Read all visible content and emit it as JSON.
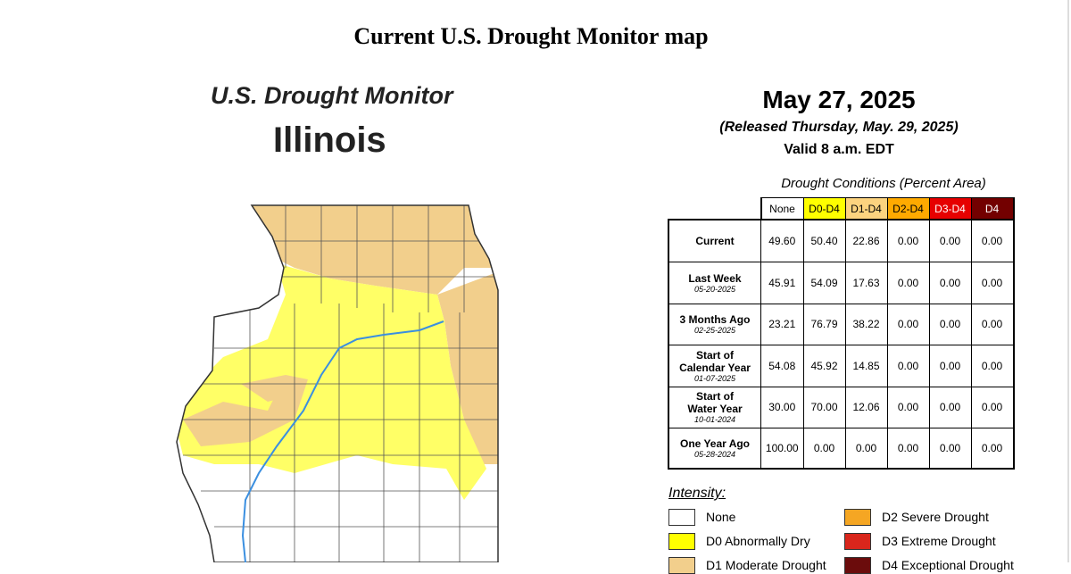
{
  "page_title": "Current U.S. Drought Monitor map",
  "map": {
    "title": "U.S. Drought Monitor",
    "state": "Illinois"
  },
  "info": {
    "date": "May 27, 2025",
    "released": "(Released Thursday, May. 29, 2025)",
    "valid": "Valid 8 a.m. EDT"
  },
  "table": {
    "caption": "Drought Conditions (Percent Area)",
    "headers": [
      "None",
      "D0-D4",
      "D1-D4",
      "D2-D4",
      "D3-D4",
      "D4"
    ],
    "rows": [
      {
        "label": [
          "Current"
        ],
        "cells": [
          "49.60",
          "50.40",
          "22.86",
          "0.00",
          "0.00",
          "0.00"
        ]
      },
      {
        "label": [
          "Last Week"
        ],
        "date": "05-20-2025",
        "cells": [
          "45.91",
          "54.09",
          "17.63",
          "0.00",
          "0.00",
          "0.00"
        ]
      },
      {
        "label": [
          "3 Months Ago"
        ],
        "date": "02-25-2025",
        "cells": [
          "23.21",
          "76.79",
          "38.22",
          "0.00",
          "0.00",
          "0.00"
        ]
      },
      {
        "label": [
          "Start of",
          "Calendar Year"
        ],
        "date": "01-07-2025",
        "cells": [
          "54.08",
          "45.92",
          "14.85",
          "0.00",
          "0.00",
          "0.00"
        ]
      },
      {
        "label": [
          "Start of",
          "Water Year"
        ],
        "date": "10-01-2024",
        "cells": [
          "30.00",
          "70.00",
          "12.06",
          "0.00",
          "0.00",
          "0.00"
        ]
      },
      {
        "label": [
          "One Year Ago"
        ],
        "date": "05-28-2024",
        "cells": [
          "100.00",
          "0.00",
          "0.00",
          "0.00",
          "0.00",
          "0.00"
        ]
      }
    ]
  },
  "legend": {
    "title": "Intensity:",
    "items": [
      "None",
      "D0 Abnormally Dry",
      "D1 Moderate Drought",
      "D2 Severe Drought",
      "D3 Extreme Drought",
      "D4 Exceptional Drought"
    ]
  }
}
